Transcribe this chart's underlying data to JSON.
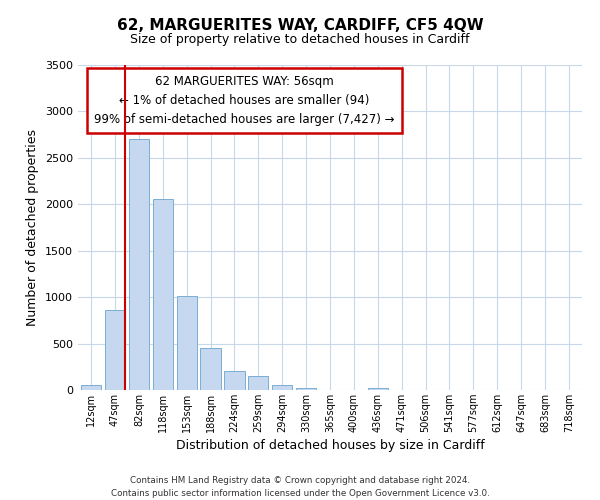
{
  "title": "62, MARGUERITES WAY, CARDIFF, CF5 4QW",
  "subtitle": "Size of property relative to detached houses in Cardiff",
  "xlabel": "Distribution of detached houses by size in Cardiff",
  "ylabel": "Number of detached properties",
  "bar_color": "#c5d8f0",
  "bar_edge_color": "#7aaed4",
  "categories": [
    "12sqm",
    "47sqm",
    "82sqm",
    "118sqm",
    "153sqm",
    "188sqm",
    "224sqm",
    "259sqm",
    "294sqm",
    "330sqm",
    "365sqm",
    "400sqm",
    "436sqm",
    "471sqm",
    "506sqm",
    "541sqm",
    "577sqm",
    "612sqm",
    "647sqm",
    "683sqm",
    "718sqm"
  ],
  "values": [
    55,
    860,
    2700,
    2060,
    1010,
    455,
    205,
    150,
    55,
    20,
    0,
    0,
    20,
    0,
    0,
    0,
    0,
    0,
    0,
    0,
    0
  ],
  "ylim": [
    0,
    3500
  ],
  "yticks": [
    0,
    500,
    1000,
    1500,
    2000,
    2500,
    3000,
    3500
  ],
  "vline_x_index": 1,
  "vline_color": "#cc0000",
  "annotation_text": "62 MARGUERITES WAY: 56sqm\n← 1% of detached houses are smaller (94)\n99% of semi-detached houses are larger (7,427) →",
  "annotation_box_color": "#ffffff",
  "annotation_box_edge": "#cc0000",
  "footer_line1": "Contains HM Land Registry data © Crown copyright and database right 2024.",
  "footer_line2": "Contains public sector information licensed under the Open Government Licence v3.0.",
  "background_color": "#ffffff",
  "grid_color": "#c8d8e8"
}
